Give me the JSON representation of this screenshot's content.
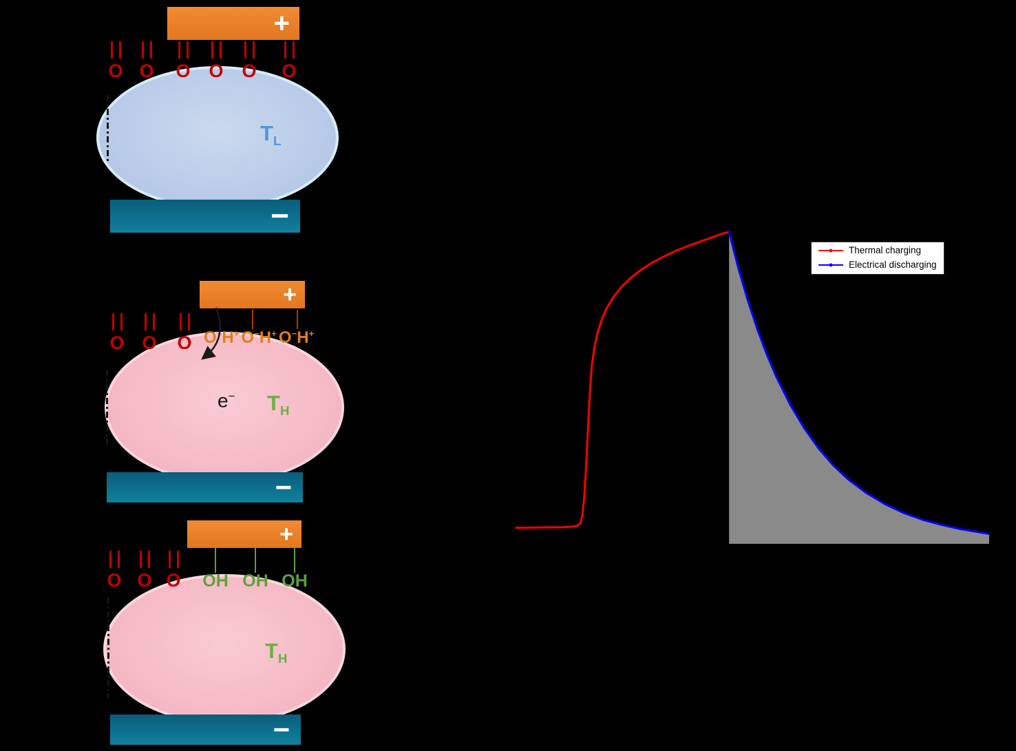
{
  "colors": {
    "background": "#000000",
    "electrode_positive": "#e8802c",
    "electrode_negative": "#0e7290",
    "droplet_cold": "#b4c8e7",
    "droplet_hot": "#f4b6c2",
    "carbonyl_red": "#c40000",
    "deprotonated_orange": "#e07e1e",
    "hydroxyl_green": "#5da23c",
    "temp_cold_blue": "#4e97d8",
    "temp_hot_green": "#6fae47",
    "charge_curve": "#ff0000",
    "discharge_curve": "#0000ff",
    "discharge_area": "#8a8a8a"
  },
  "panels": {
    "cold": {
      "plus": "+",
      "minus": "−",
      "o": "O",
      "temp_main": "T",
      "temp_sub": "L"
    },
    "charging": {
      "plus": "+",
      "minus": "−",
      "o": "O",
      "dep_o": "O",
      "dep_minus": "−",
      "dep_h": "H",
      "dep_plus": "+",
      "electron_base": "e",
      "electron_sup": "−",
      "temp_main": "T",
      "temp_sub": "H"
    },
    "discharged": {
      "plus": "+",
      "minus": "−",
      "o": "O",
      "oh": "OH",
      "temp_main": "T",
      "temp_sub": "H"
    }
  },
  "chart_data": {
    "type": "line",
    "title": "",
    "xlabel": "",
    "ylabel": "",
    "xlim": [
      0,
      100
    ],
    "ylim": [
      0,
      100
    ],
    "grid": false,
    "legend_position": "upper right",
    "series": [
      {
        "name": "Thermal charging",
        "color": "#ff0000",
        "x": [
          0,
          5,
          10,
          12,
          13,
          13.6,
          14,
          14.4,
          14.8,
          15.2,
          15.6,
          16,
          16.6,
          17.3,
          18.2,
          19.2,
          20.5,
          22,
          24,
          26,
          28.5,
          31,
          34,
          37,
          40,
          43,
          45
        ],
        "y": [
          5,
          5.1,
          5.2,
          5.4,
          5.7,
          6.5,
          9,
          15,
          25,
          37,
          48,
          56,
          62,
          66.5,
          70.5,
          73.8,
          77,
          79.8,
          82.8,
          85.2,
          87.6,
          89.6,
          91.7,
          93.4,
          95,
          96.6,
          97.5
        ]
      },
      {
        "name": "Electrical discharging",
        "color": "#0000ff",
        "area_fill": "#8a8a8a",
        "x": [
          45,
          47,
          49,
          51,
          53,
          55,
          58,
          61,
          64,
          67,
          70,
          74,
          78,
          82,
          86,
          90,
          94,
          98,
          100
        ],
        "y": [
          97.5,
          86,
          75.9,
          67,
          59.1,
          52.2,
          43.3,
          35.9,
          29.7,
          24.6,
          20.4,
          15.9,
          12.4,
          9.6,
          7.5,
          5.9,
          4.6,
          3.6,
          3.1
        ]
      }
    ]
  }
}
